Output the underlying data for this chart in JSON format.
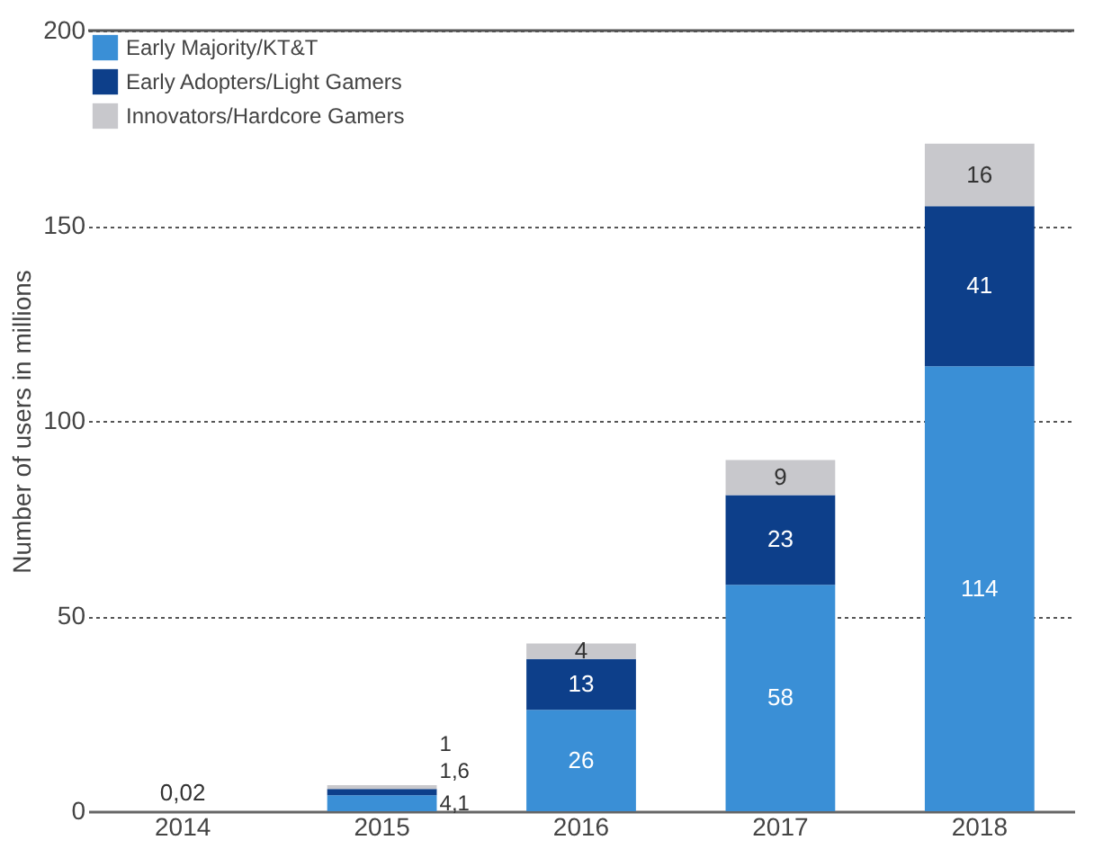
{
  "chart_data": {
    "type": "bar",
    "stacked": true,
    "ylabel": "Number of users in millions",
    "categories": [
      "2014",
      "2015",
      "2016",
      "2017",
      "2018"
    ],
    "series": [
      {
        "name": "Early Majority/KT&T",
        "color": "#3a8fd6",
        "values": [
          null,
          4.1,
          26,
          58,
          114
        ],
        "value_labels": [
          null,
          "4,1",
          "26",
          "58",
          "114"
        ]
      },
      {
        "name": "Early Adopters/Light Gamers",
        "color": "#0d3f8a",
        "values": [
          null,
          1.6,
          13,
          23,
          41
        ],
        "value_labels": [
          null,
          "1,6",
          "13",
          "23",
          "41"
        ]
      },
      {
        "name": "Innovators/Hardcore Gamers",
        "color": "#c8c8cc",
        "values": [
          0.02,
          1,
          4,
          9,
          16
        ],
        "value_labels": [
          "0,02",
          "1",
          "4",
          "9",
          "16"
        ]
      }
    ],
    "ylim": [
      0,
      200
    ],
    "yticks": [
      0,
      50,
      100,
      150,
      200
    ],
    "grid": "y",
    "legend": "top left"
  }
}
